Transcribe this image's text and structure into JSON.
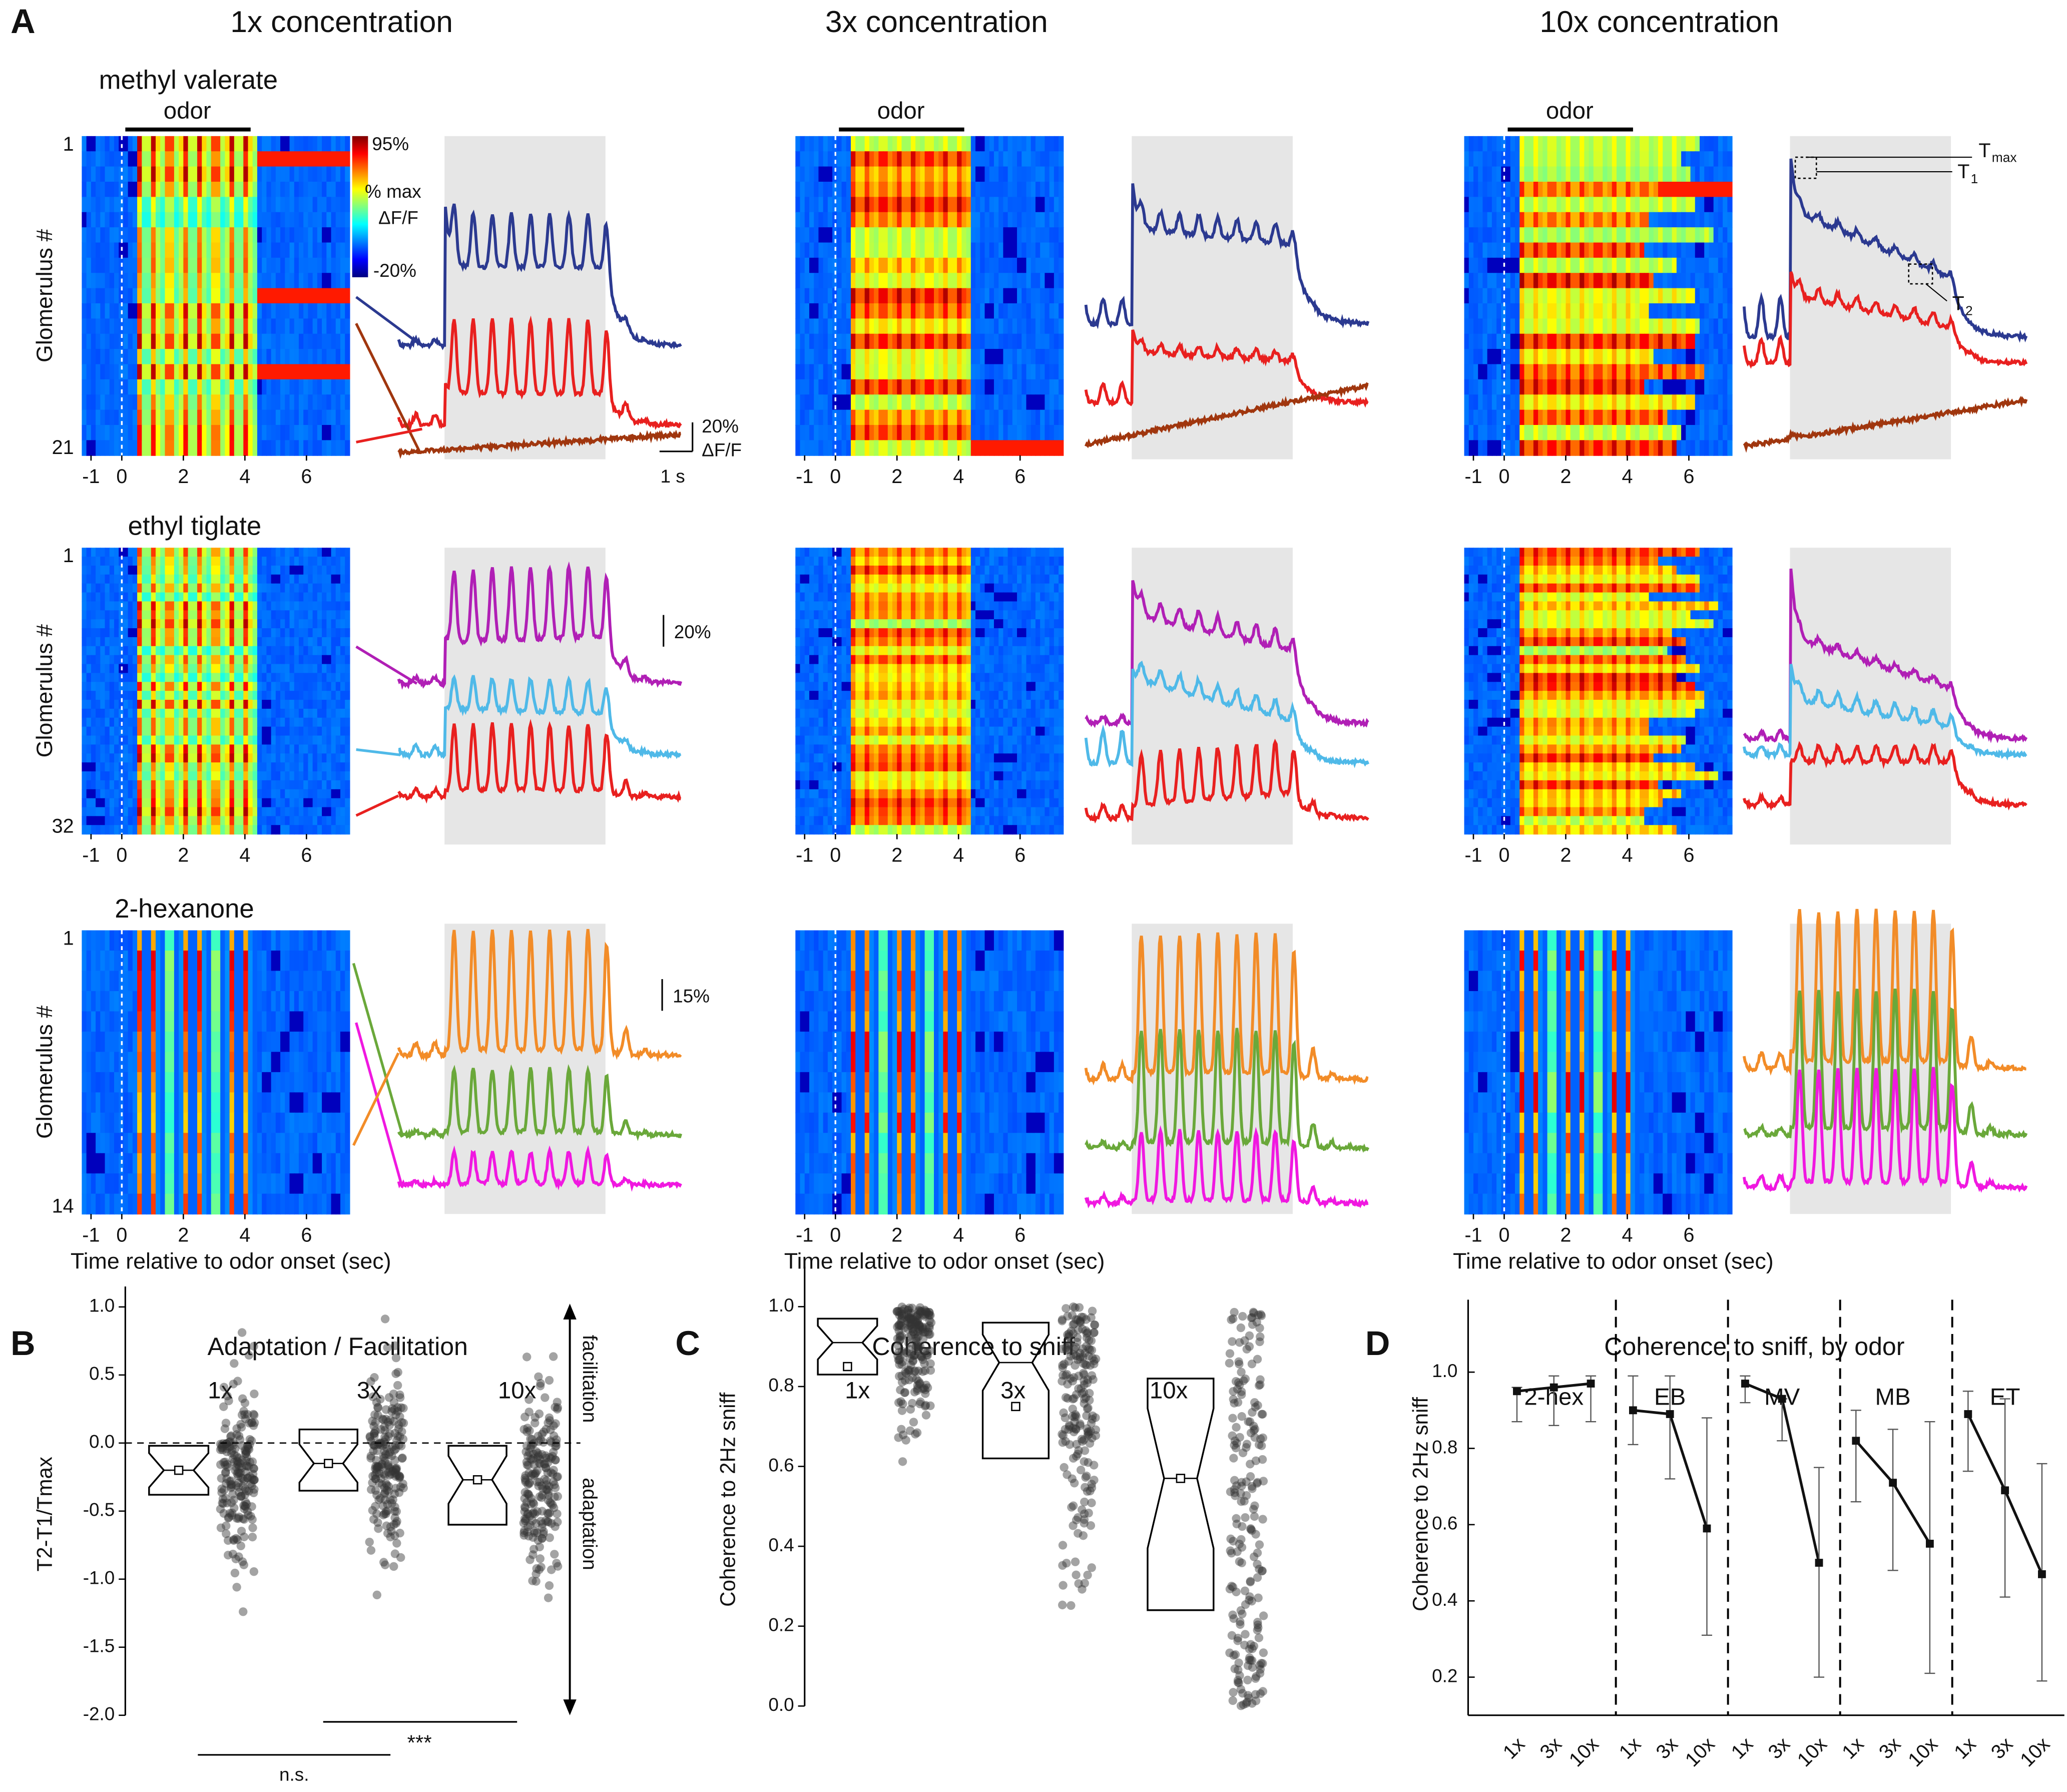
{
  "chart_data": [
    {
      "type": "heatmap",
      "label": "A",
      "columns": [
        "1x concentration",
        "3x concentration",
        "10x concentration"
      ],
      "odors": [
        "methyl valerate",
        "ethyl tiglate",
        "2-hexanone"
      ],
      "odor_bar": "odor",
      "ylabel": "Glomerulus #",
      "glomerulus_first": [
        1,
        1,
        1
      ],
      "glomerulus_last": [
        21,
        32,
        14
      ],
      "xlabel": "Time relative to odor onset (sec)",
      "xlim": [
        -1.3,
        7.4
      ],
      "xticks": [
        -1,
        0,
        2,
        4,
        6
      ],
      "colorbar": {
        "max": "95%",
        "title": "% max",
        "unit": "ΔF/F",
        "min": "-20%"
      },
      "scalebars": {
        "row1_amp": "20%",
        "row1_unit": "ΔF/F",
        "row1_time": "1 s",
        "row2_amp": "20%",
        "row3_amp": "15%"
      },
      "markers": {
        "t": "T",
        "max": "max",
        "one": "1",
        "two": "2"
      }
    },
    {
      "type": "box",
      "label": "B",
      "title": "Adaptation / Facilitation",
      "ylabel": "T2-T1/Tmax",
      "groups": [
        "1x",
        "3x",
        "10x"
      ],
      "ylim": [
        -2.0,
        1.15
      ],
      "yticks": [
        {
          "value": 1,
          "label": "1.0"
        },
        0.5,
        {
          "value": 0,
          "label": "0.0"
        },
        -0.5,
        {
          "value": -1,
          "label": "-1.0"
        },
        -1.5,
        {
          "value": -2,
          "label": "-2.0"
        }
      ],
      "q1": [
        -0.38,
        -0.35,
        -0.6
      ],
      "median": [
        -0.2,
        -0.15,
        -0.27
      ],
      "q3": [
        -0.02,
        0.1,
        -0.02
      ],
      "mean": [
        -0.2,
        -0.15,
        -0.27
      ],
      "arrow_up": "facilitation",
      "arrow_down": "adaptation",
      "significance": [
        "n.s.",
        "***"
      ]
    },
    {
      "type": "box",
      "label": "C",
      "title": "Coherence to sniff",
      "ylabel": "Coherence to 2Hz sniff",
      "groups": [
        "1x",
        "3x",
        "10x"
      ],
      "ylim": [
        0,
        1.1
      ],
      "yticks": [
        {
          "value": 0,
          "label": "0.0"
        },
        0.2,
        0.4,
        0.6,
        0.8,
        {
          "value": 1,
          "label": "1.0"
        }
      ],
      "q1": [
        0.83,
        0.62,
        0.24
      ],
      "median": [
        0.91,
        0.86,
        0.57
      ],
      "q3": [
        0.97,
        0.96,
        0.82
      ],
      "mean": [
        0.85,
        0.75,
        0.57
      ]
    },
    {
      "type": "line",
      "label": "D",
      "title": "Coherence to sniff, by odor",
      "ylabel": "Coherence to 2Hz sniff",
      "categories": [
        "1x",
        "3x",
        "10x"
      ],
      "ylim": [
        0.1,
        1.19
      ],
      "yticks": [
        0.2,
        0.4,
        0.6,
        0.8,
        {
          "value": 1,
          "label": "1.0"
        }
      ],
      "series": [
        {
          "name": "2-hex",
          "color": "#111111",
          "values": [
            0.95,
            0.96,
            0.97
          ],
          "lower": [
            0.87,
            0.86,
            0.87
          ],
          "upper": [
            0.96,
            0.99,
            0.99
          ]
        },
        {
          "name": "EB",
          "color": "#111111",
          "values": [
            0.9,
            0.89,
            0.59
          ],
          "lower": [
            0.81,
            0.72,
            0.31
          ],
          "upper": [
            0.99,
            0.99,
            0.88
          ]
        },
        {
          "name": "MV",
          "color": "#111111",
          "values": [
            0.97,
            0.93,
            0.5
          ],
          "lower": [
            0.92,
            0.82,
            0.2
          ],
          "upper": [
            0.99,
            0.93,
            0.75
          ]
        },
        {
          "name": "MB",
          "color": "#111111",
          "values": [
            0.82,
            0.71,
            0.55
          ],
          "lower": [
            0.66,
            0.48,
            0.21
          ],
          "upper": [
            0.9,
            0.85,
            0.87
          ]
        },
        {
          "name": "ET",
          "color": "#111111",
          "values": [
            0.89,
            0.69,
            0.47
          ],
          "lower": [
            0.74,
            0.41,
            0.19
          ],
          "upper": [
            0.95,
            0.93,
            0.76
          ]
        }
      ]
    }
  ]
}
